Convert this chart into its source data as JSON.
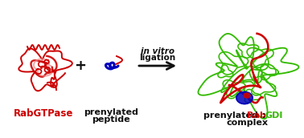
{
  "bg_color": "#ffffff",
  "label1": "RabGTPase",
  "label2_line1": "prenylated",
  "label2_line2": "peptide",
  "label3_line2": "complex",
  "arrow_text_line1": "in vitro",
  "arrow_text_line2": "ligation",
  "color_red": "#cc0000",
  "color_green": "#33bb00",
  "color_blue": "#0000bb",
  "color_pink": "#ee8888",
  "color_black": "#111111",
  "figsize": [
    3.78,
    1.72
  ],
  "dpi": 100
}
